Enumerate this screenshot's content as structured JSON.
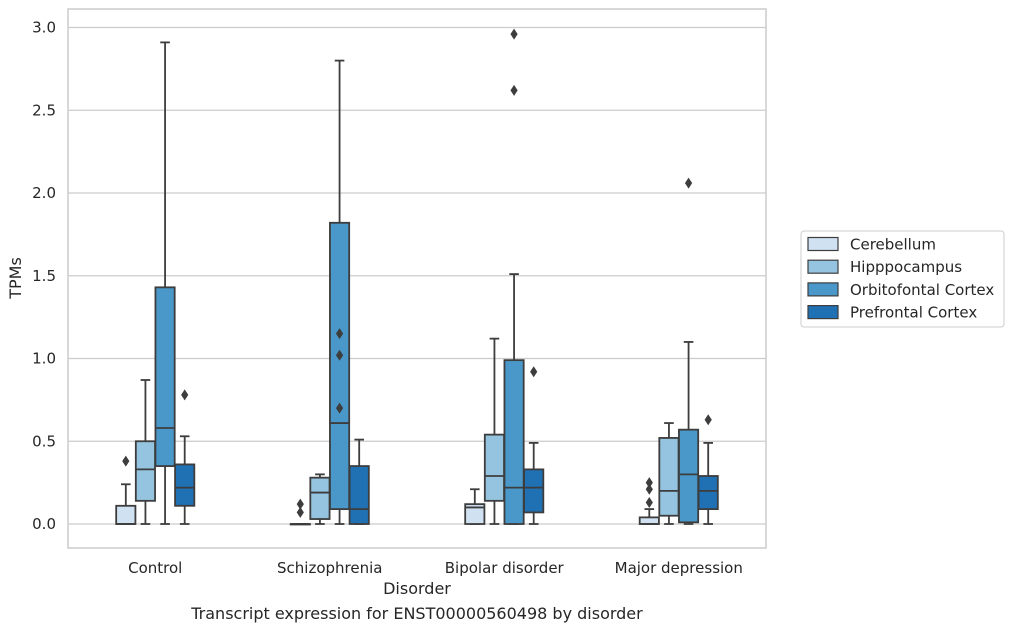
{
  "caption": "Transcript expression for ENST00000560498 by disorder",
  "chart_data": {
    "type": "boxplot",
    "xlabel": "Disorder",
    "ylabel": "TPMs",
    "ylim": [
      -0.15,
      3.12
    ],
    "yticks": [
      0.0,
      0.5,
      1.0,
      1.5,
      2.0,
      2.5,
      3.0
    ],
    "ytick_labels": [
      "0.0",
      "0.5",
      "1.0",
      "1.5",
      "2.0",
      "2.5",
      "3.0"
    ],
    "grid": true,
    "legend_position": "right",
    "categories": [
      "Control",
      "Schizophrenia",
      "Bipolar disorder",
      "Major depression"
    ],
    "series": [
      {
        "name": "Cerebellum",
        "color": "#d0e1f2",
        "boxes": [
          {
            "whisker_low": 0.0,
            "q1": 0.0,
            "median": 0.0,
            "q3": 0.11,
            "whisker_high": 0.24,
            "outliers": [
              0.38
            ]
          },
          {
            "whisker_low": 0.0,
            "q1": 0.0,
            "median": 0.0,
            "q3": 0.0,
            "whisker_high": 0.0,
            "outliers": [
              0.07,
              0.12
            ]
          },
          {
            "whisker_low": 0.0,
            "q1": 0.0,
            "median": 0.1,
            "q3": 0.12,
            "whisker_high": 0.21,
            "outliers": []
          },
          {
            "whisker_low": 0.0,
            "q1": 0.0,
            "median": 0.0,
            "q3": 0.04,
            "whisker_high": 0.09,
            "outliers": [
              0.13,
              0.21,
              0.25
            ]
          }
        ]
      },
      {
        "name": "Hipppocampus",
        "color": "#94c4df",
        "boxes": [
          {
            "whisker_low": 0.0,
            "q1": 0.14,
            "median": 0.33,
            "q3": 0.5,
            "whisker_high": 0.87,
            "outliers": []
          },
          {
            "whisker_low": 0.0,
            "q1": 0.03,
            "median": 0.19,
            "q3": 0.28,
            "whisker_high": 0.3,
            "outliers": []
          },
          {
            "whisker_low": 0.0,
            "q1": 0.14,
            "median": 0.29,
            "q3": 0.54,
            "whisker_high": 1.12,
            "outliers": []
          },
          {
            "whisker_low": 0.0,
            "q1": 0.05,
            "median": 0.2,
            "q3": 0.52,
            "whisker_high": 0.61,
            "outliers": []
          }
        ]
      },
      {
        "name": "Orbitofontal Cortex",
        "color": "#4a98c9",
        "boxes": [
          {
            "whisker_low": 0.0,
            "q1": 0.35,
            "median": 0.58,
            "q3": 1.43,
            "whisker_high": 2.91,
            "outliers": []
          },
          {
            "whisker_low": 0.0,
            "q1": 0.09,
            "median": 0.61,
            "q3": 1.82,
            "whisker_high": 2.8,
            "outliers": [
              0.7,
              1.02,
              1.15
            ]
          },
          {
            "whisker_low": 0.0,
            "q1": 0.0,
            "median": 0.22,
            "q3": 0.99,
            "whisker_high": 1.51,
            "outliers": [
              2.62,
              2.96
            ]
          },
          {
            "whisker_low": 0.0,
            "q1": 0.01,
            "median": 0.3,
            "q3": 0.57,
            "whisker_high": 1.1,
            "outliers": [
              2.06
            ]
          }
        ]
      },
      {
        "name": "Prefrontal Cortex",
        "color": "#2070b4",
        "boxes": [
          {
            "whisker_low": 0.0,
            "q1": 0.11,
            "median": 0.22,
            "q3": 0.36,
            "whisker_high": 0.53,
            "outliers": [
              0.78
            ]
          },
          {
            "whisker_low": 0.0,
            "q1": 0.0,
            "median": 0.09,
            "q3": 0.35,
            "whisker_high": 0.51,
            "outliers": []
          },
          {
            "whisker_low": 0.0,
            "q1": 0.07,
            "median": 0.22,
            "q3": 0.33,
            "whisker_high": 0.49,
            "outliers": [
              0.92
            ]
          },
          {
            "whisker_low": 0.0,
            "q1": 0.09,
            "median": 0.2,
            "q3": 0.29,
            "whisker_high": 0.49,
            "outliers": [
              0.63
            ]
          }
        ]
      }
    ]
  }
}
